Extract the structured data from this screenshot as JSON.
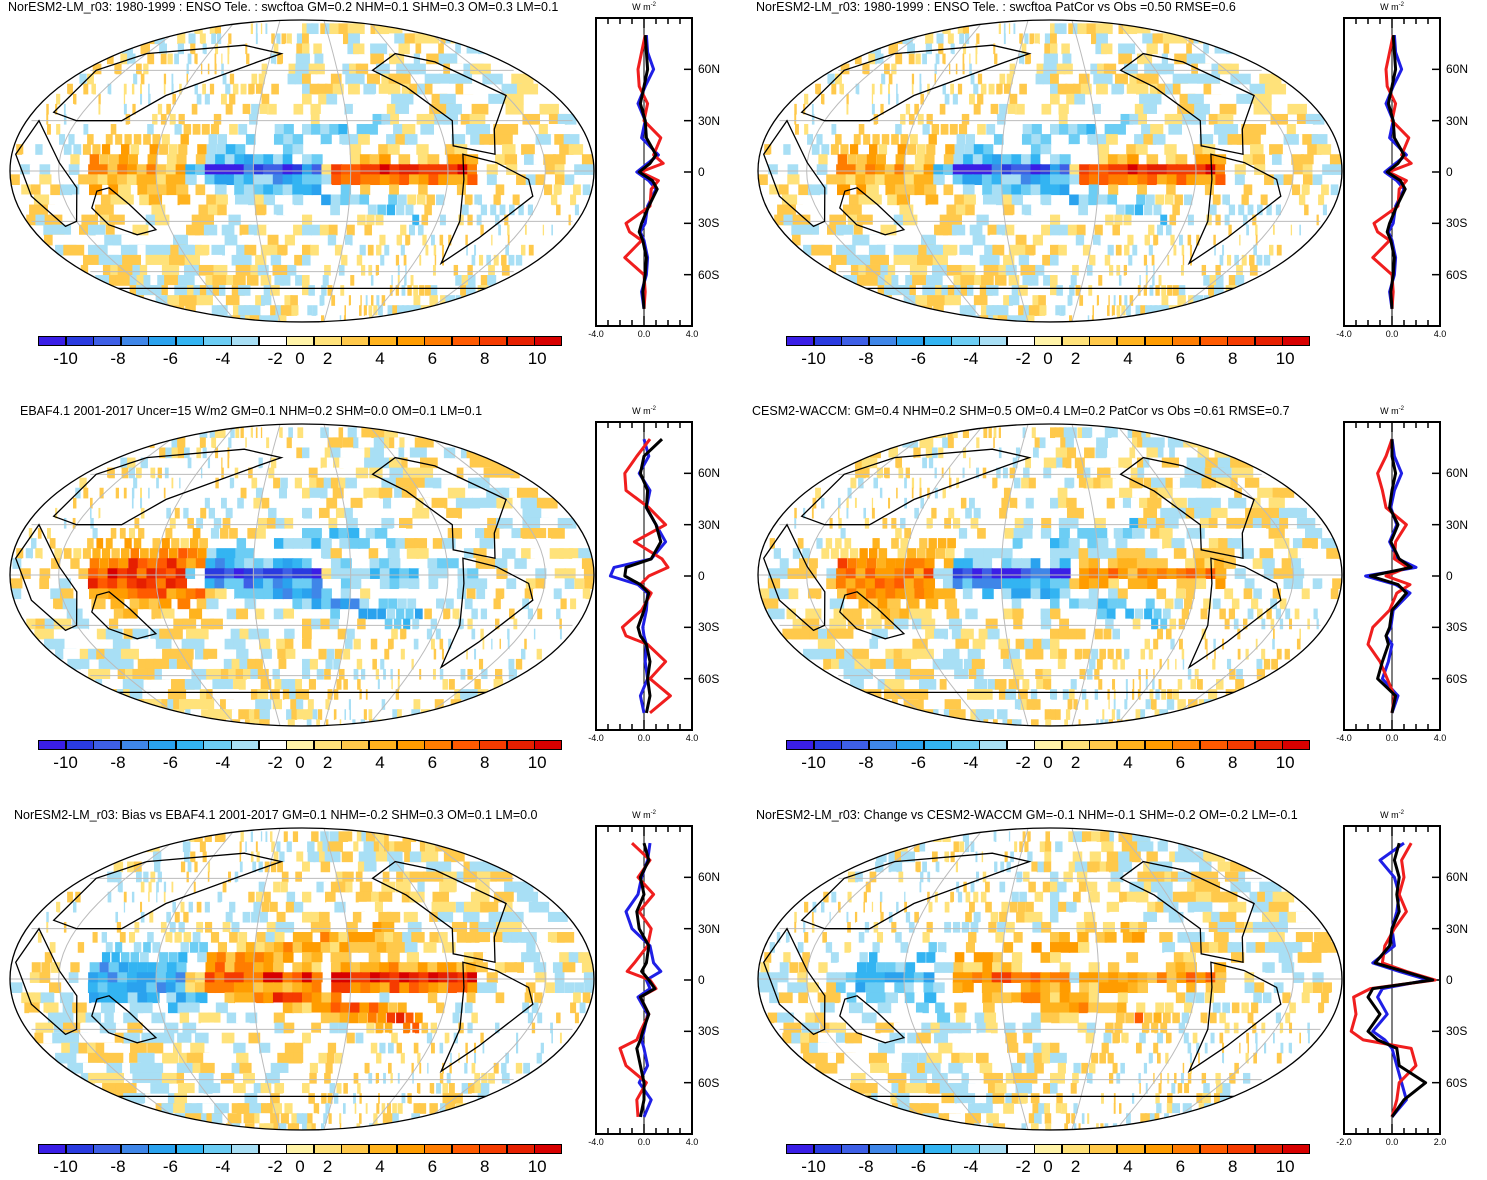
{
  "colorbar": {
    "labels": [
      "-10",
      "-8",
      "-6",
      "-4",
      "-2",
      "0",
      "2",
      "4",
      "6",
      "8",
      "10"
    ],
    "colors": [
      "#3a1ee6",
      "#2a3be0",
      "#3e5fe6",
      "#3f86e8",
      "#2aa2ee",
      "#33b4f2",
      "#6ccdf4",
      "#a8dff5",
      "#ffffff",
      "#fff3a8",
      "#ffe27a",
      "#ffc94b",
      "#ffb31e",
      "#ff9c00",
      "#ff7d00",
      "#ff5a00",
      "#f53b00",
      "#e61f00",
      "#d80000"
    ]
  },
  "profile_colors": {
    "blue": "#1f1fe6",
    "red": "#f01e1e",
    "black": "#000000"
  },
  "unit_label": {
    "base": "W m",
    "exp": "-2"
  },
  "panels": [
    {
      "title": "NorESM2-LM_r03: 1980-1999 : ENSO Tele. : swcftoa GM=0.2 NHM=0.1 SHM=0.3 OM=0.3 LM=0.1",
      "lat_labels": [
        "60N",
        "30N",
        "0",
        "30S",
        "60S"
      ],
      "x_labels": [
        "-4.0",
        "0.0",
        "4.0"
      ],
      "x_range": [
        -4,
        4
      ],
      "pattern": {
        "seed": 11,
        "eq_west": -9,
        "eq_east": 9,
        "wp": 4,
        "spcz": -4
      }
    },
    {
      "title": "NorESM2-LM_r03: 1980-1999 : ENSO Tele. : swcftoa PatCor vs Obs =0.50 RMSE=0.6",
      "lat_labels": [
        "60N",
        "30N",
        "0",
        "30S",
        "60S"
      ],
      "x_labels": [
        "-4.0",
        "0.0",
        "4.0"
      ],
      "x_range": [
        -4,
        4
      ],
      "pattern": {
        "seed": 11,
        "eq_west": -9,
        "eq_east": 9,
        "wp": 4,
        "spcz": -4
      }
    },
    {
      "title": "EBAF4.1 2001-2017 Uncer=15 W/m2 GM=0.1 NHM=0.2 SHM=0.0 OM=0.1 LM=0.1",
      "lat_labels": [
        "60N",
        "30N",
        "0",
        "30S",
        "60S"
      ],
      "x_labels": [
        "-4.0",
        "0.0",
        "4.0"
      ],
      "x_range": [
        -4,
        4
      ],
      "pattern": {
        "seed": 23,
        "eq_west": -10,
        "eq_east": -3,
        "wp": 8,
        "spcz": -5
      }
    },
    {
      "title": "CESM2-WACCM: GM=0.4 NHM=0.2 SHM=0.5 OM=0.4 LM=0.2 PatCor vs Obs =0.61 RMSE=0.7",
      "lat_labels": [
        "60N",
        "30N",
        "0",
        "30S",
        "60S"
      ],
      "x_labels": [
        "-4.0",
        "0.0",
        "4.0"
      ],
      "x_range": [
        -4,
        4
      ],
      "pattern": {
        "seed": 37,
        "eq_west": -10,
        "eq_east": 5,
        "wp": 6,
        "spcz": -4
      }
    },
    {
      "title": "NorESM2-LM_r03: Bias vs EBAF4.1 2001-2017 GM=0.1 NHM=-0.2 SHM=0.3 OM=0.1 LM=0.0",
      "lat_labels": [
        "60N",
        "30N",
        "0",
        "30S",
        "60S"
      ],
      "x_labels": [
        "-4.0",
        "0.0",
        "4.0"
      ],
      "x_range": [
        -4,
        4
      ],
      "pattern": {
        "seed": 51,
        "eq_west": 8,
        "eq_east": 10,
        "wp": -5,
        "spcz": 7
      }
    },
    {
      "title": "NorESM2-LM_r03: Change vs CESM2-WACCM GM=-0.1 NHM=-0.1 SHM=-0.2 OM=-0.2 LM=-0.1",
      "lat_labels": [
        "60N",
        "30N",
        "0",
        "30S",
        "60S"
      ],
      "x_labels": [
        "-2.0",
        "0.0",
        "2.0"
      ],
      "x_range": [
        -2,
        2
      ],
      "pattern": {
        "seed": 67,
        "eq_west": 6,
        "eq_east": 5,
        "wp": -4,
        "spcz": 4
      }
    }
  ],
  "chart_data": {
    "type": "heatmap",
    "description_variable": "swcftoa ENSO teleconnection",
    "colorbar_range": [
      -11,
      11
    ],
    "colorbar_ticks": [
      -10,
      -8,
      -6,
      -4,
      -2,
      0,
      2,
      4,
      6,
      8,
      10
    ],
    "lat_ticks": [
      60,
      30,
      0,
      -30,
      -60
    ],
    "profiles": [
      {
        "panel": 0,
        "lat": [
          80,
          70,
          60,
          50,
          40,
          30,
          20,
          10,
          5,
          0,
          -5,
          -10,
          -20,
          -30,
          -35,
          -40,
          -50,
          -60,
          -70,
          -80
        ],
        "blue": [
          0.2,
          0.3,
          0.8,
          0.1,
          -0.5,
          0.1,
          -0.2,
          1.2,
          0.3,
          -0.6,
          0.4,
          1.0,
          0.3,
          0.1,
          -0.3,
          0.0,
          0.3,
          0.2,
          -0.2,
          0.0
        ],
        "red": [
          0.1,
          -0.2,
          -0.5,
          -0.4,
          0.3,
          0.0,
          1.4,
          0.8,
          1.6,
          -0.3,
          1.2,
          0.6,
          0.5,
          -1.5,
          -1.2,
          -0.2,
          -1.6,
          0.0,
          0.1,
          0.0
        ],
        "black": [
          0.1,
          0.2,
          0.3,
          0.0,
          -0.3,
          0.1,
          0.2,
          1.0,
          0.5,
          -0.4,
          0.7,
          1.1,
          0.4,
          -0.2,
          -0.4,
          -0.1,
          0.2,
          0.1,
          -0.1,
          0.0
        ]
      },
      {
        "panel": 1,
        "lat": [
          80,
          70,
          60,
          50,
          40,
          30,
          20,
          10,
          5,
          0,
          -5,
          -10,
          -20,
          -30,
          -35,
          -40,
          -50,
          -60,
          -70,
          -80
        ],
        "blue": [
          0.2,
          0.3,
          0.8,
          0.1,
          -0.5,
          0.1,
          -0.2,
          1.2,
          0.3,
          -0.6,
          0.4,
          1.0,
          0.3,
          0.1,
          -0.3,
          0.0,
          0.3,
          0.2,
          -0.2,
          0.0
        ],
        "red": [
          0.1,
          -0.2,
          -0.5,
          -0.4,
          0.3,
          0.0,
          1.4,
          0.8,
          1.6,
          -0.3,
          1.2,
          0.6,
          0.5,
          -1.5,
          -1.2,
          -0.2,
          -1.6,
          0.0,
          0.1,
          0.0
        ],
        "black": [
          0.1,
          0.2,
          0.3,
          0.0,
          -0.3,
          0.1,
          0.2,
          1.0,
          0.5,
          -0.4,
          0.7,
          1.1,
          0.4,
          -0.2,
          -0.4,
          -0.1,
          0.2,
          0.1,
          -0.1,
          0.0
        ]
      },
      {
        "panel": 2,
        "lat": [
          80,
          70,
          60,
          50,
          40,
          30,
          20,
          10,
          5,
          0,
          -5,
          -10,
          -20,
          -30,
          -35,
          -40,
          -50,
          -60,
          -70,
          -80
        ],
        "blue": [
          0.0,
          0.4,
          -0.4,
          0.5,
          0.2,
          1.0,
          1.8,
          0.6,
          -2.5,
          -2.8,
          -0.5,
          0.3,
          0.2,
          -0.1,
          0.0,
          0.2,
          0.1,
          0.3,
          -0.3,
          0.0
        ],
        "red": [
          0.5,
          -0.6,
          -1.6,
          -1.5,
          0.4,
          1.8,
          -0.8,
          1.5,
          2.0,
          0.4,
          -0.3,
          0.6,
          -0.2,
          -1.8,
          -1.5,
          0.3,
          1.8,
          0.5,
          2.2,
          0.5
        ],
        "black": [
          1.5,
          0.0,
          -0.3,
          0.3,
          0.2,
          1.0,
          1.4,
          0.6,
          -1.5,
          -1.6,
          -0.3,
          0.4,
          0.0,
          -0.5,
          -0.3,
          0.2,
          0.5,
          0.3,
          0.5,
          0.2
        ]
      },
      {
        "panel": 3,
        "lat": [
          80,
          70,
          60,
          50,
          40,
          30,
          20,
          10,
          5,
          0,
          -5,
          -10,
          -20,
          -30,
          -35,
          -40,
          -50,
          -60,
          -70,
          -80
        ],
        "blue": [
          0.0,
          0.2,
          0.8,
          0.2,
          -0.1,
          0.4,
          -0.2,
          0.5,
          2.0,
          -2.2,
          0.3,
          1.5,
          0.1,
          -0.1,
          -0.5,
          0.0,
          -0.3,
          -0.8,
          0.5,
          0.0
        ],
        "red": [
          0.0,
          -0.5,
          -1.2,
          -0.8,
          -0.5,
          1.2,
          0.3,
          0.2,
          1.3,
          -0.5,
          1.5,
          0.4,
          -0.2,
          -1.6,
          -1.8,
          -2.0,
          -1.0,
          -0.4,
          0.2,
          0.0
        ],
        "black": [
          0.0,
          0.0,
          0.3,
          0.0,
          -0.2,
          0.5,
          -0.1,
          0.6,
          1.6,
          -1.8,
          0.5,
          1.2,
          0.0,
          -0.2,
          -0.5,
          -0.3,
          -0.8,
          -1.2,
          0.3,
          0.0
        ]
      },
      {
        "panel": 4,
        "lat": [
          80,
          70,
          60,
          50,
          40,
          30,
          20,
          10,
          5,
          0,
          -5,
          -10,
          -20,
          -30,
          -35,
          -40,
          -50,
          -60,
          -70,
          -80
        ],
        "blue": [
          0.5,
          0.3,
          -0.2,
          -0.5,
          -1.5,
          -1.0,
          0.5,
          0.8,
          1.4,
          0.2,
          0.5,
          -0.5,
          0.3,
          0.0,
          -0.2,
          0.0,
          0.3,
          -0.4,
          0.6,
          0.0
        ],
        "red": [
          -1.0,
          0.5,
          -0.5,
          0.8,
          -0.4,
          0.6,
          0.3,
          -0.8,
          -1.4,
          0.5,
          1.0,
          -0.3,
          0.4,
          -0.3,
          -0.6,
          -2.0,
          -1.5,
          0.2,
          -0.6,
          -0.5
        ],
        "black": [
          0.0,
          0.4,
          -0.3,
          0.0,
          -0.6,
          -0.4,
          0.4,
          0.2,
          -0.2,
          0.4,
          0.9,
          -0.3,
          0.4,
          -0.1,
          -0.3,
          -0.6,
          -0.3,
          0.0,
          0.0,
          -0.3
        ]
      },
      {
        "panel": 5,
        "lat": [
          80,
          70,
          60,
          50,
          40,
          30,
          20,
          10,
          5,
          0,
          -5,
          -10,
          -20,
          -30,
          -35,
          -40,
          -50,
          -60,
          -70,
          -80
        ],
        "blue": [
          0.5,
          -0.5,
          0.1,
          0.3,
          0.2,
          0.0,
          0.1,
          -0.8,
          0.3,
          1.5,
          -0.4,
          -0.6,
          -0.2,
          -0.8,
          -0.3,
          0.0,
          0.2,
          0.4,
          0.6,
          0.0
        ],
        "red": [
          0.8,
          0.4,
          0.5,
          0.3,
          0.6,
          0.1,
          -0.3,
          -0.4,
          0.6,
          1.8,
          -0.9,
          -1.6,
          -1.5,
          -1.7,
          -1.2,
          0.8,
          1.0,
          0.3,
          0.2,
          0.0
        ],
        "black": [
          0.3,
          0.1,
          0.3,
          0.2,
          0.3,
          0.0,
          -0.1,
          -0.7,
          0.5,
          1.7,
          -0.8,
          -1.0,
          -0.5,
          -1.0,
          -0.6,
          0.2,
          0.3,
          1.4,
          0.5,
          0.0
        ]
      }
    ]
  }
}
